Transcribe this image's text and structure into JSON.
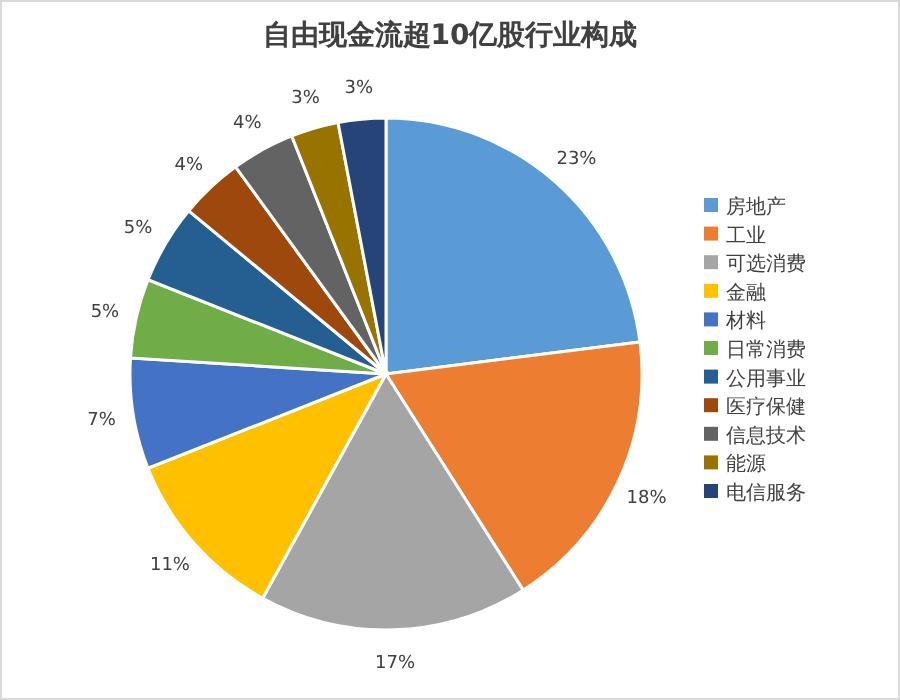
{
  "chart_data": {
    "type": "pie",
    "title": "自由现金流超10亿股行业构成",
    "categories": [
      "房地产",
      "工业",
      "可选消费",
      "金融",
      "材料",
      "日常消费",
      "公用事业",
      "医疗保健",
      "信息技术",
      "能源",
      "电信服务"
    ],
    "values": [
      23,
      18,
      17,
      11,
      7,
      5,
      5,
      4,
      4,
      3,
      3
    ],
    "value_labels": [
      "23%",
      "18%",
      "17%",
      "11%",
      "7%",
      "5%",
      "5%",
      "4%",
      "4%",
      "3%",
      "3%"
    ],
    "colors": [
      "#5b9bd5",
      "#ed7d31",
      "#a5a5a5",
      "#ffc000",
      "#4472c4",
      "#70ad47",
      "#255e91",
      "#9e480e",
      "#636363",
      "#997300",
      "#264478"
    ],
    "legend": "right"
  }
}
